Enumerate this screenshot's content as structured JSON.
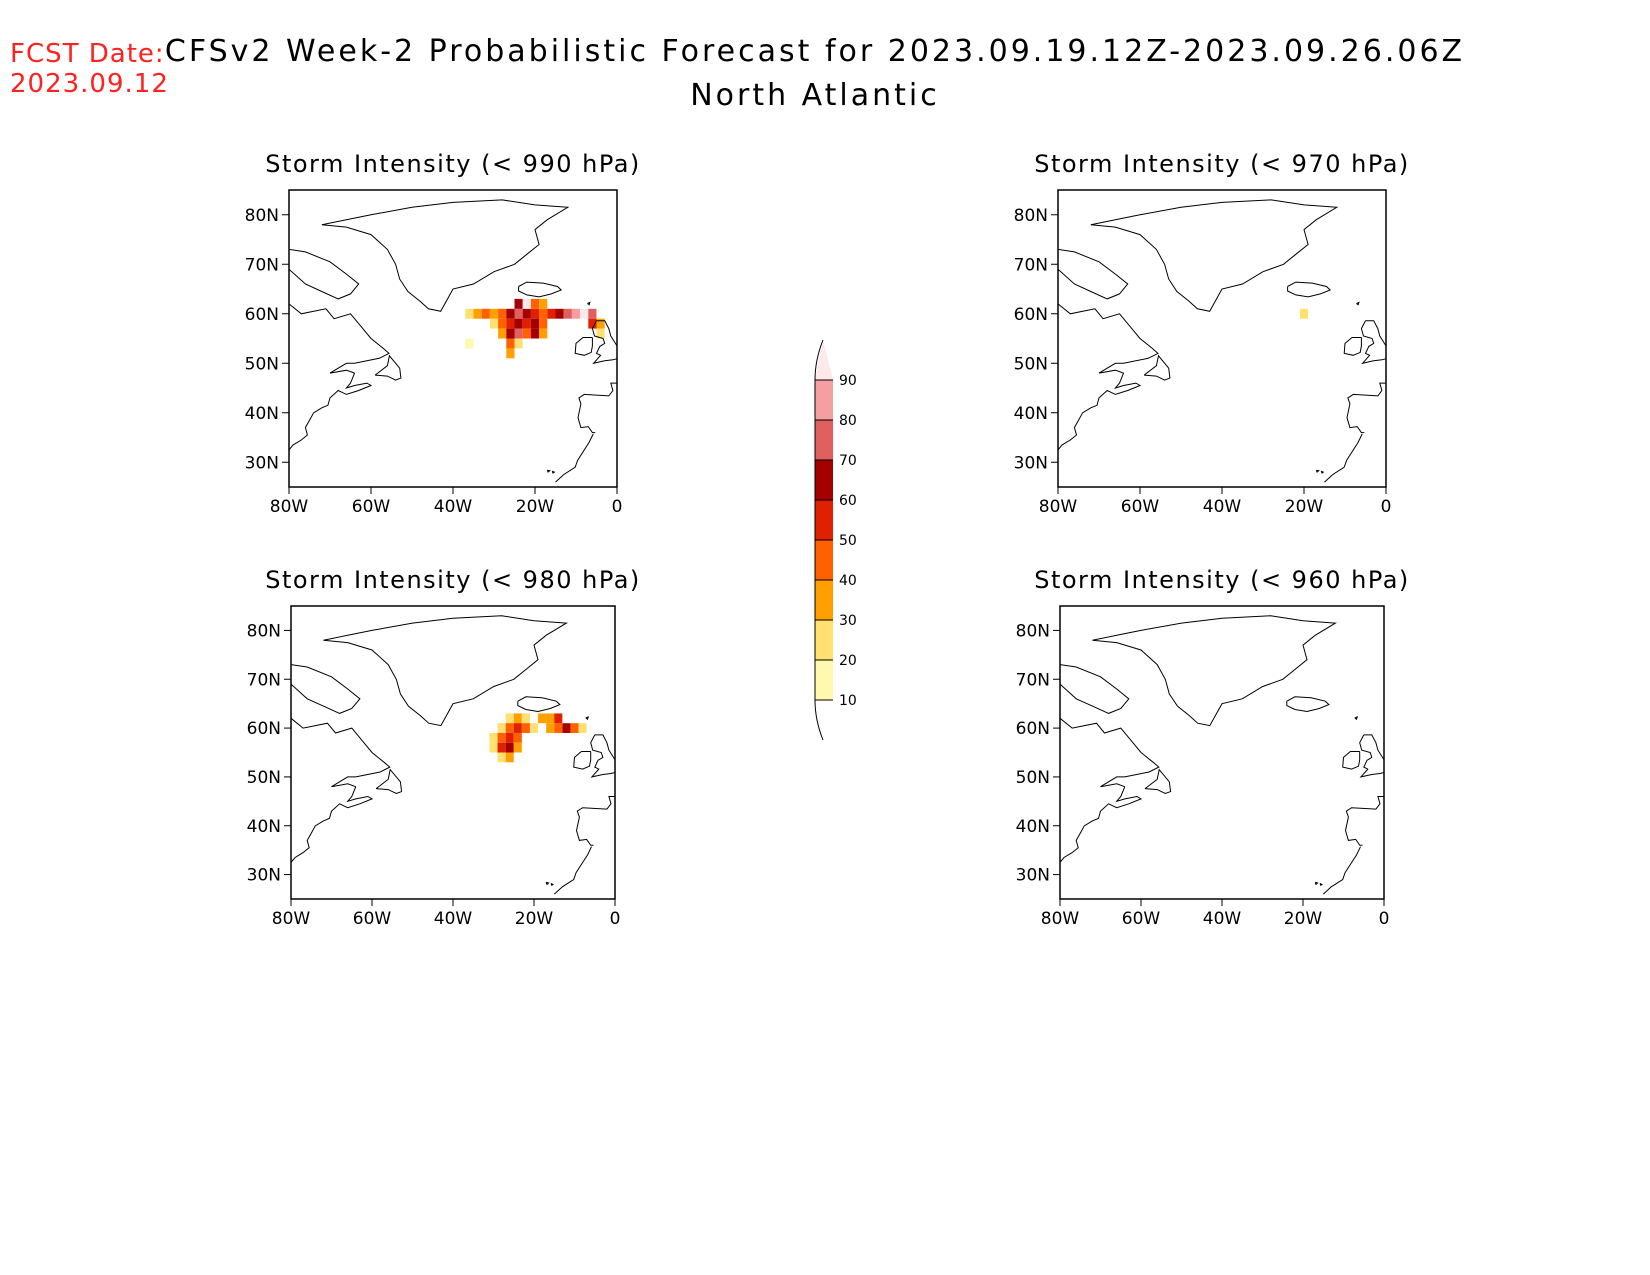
{
  "header": {
    "fcst_label": "FCST Date:",
    "fcst_date": "2023.09.12",
    "title_line1": "CFSv2 Week-2 Probabilistic Forecast for 2023.09.19.12Z-2023.09.26.06Z",
    "title_line2": "North Atlantic",
    "fcst_color": "#ff2020"
  },
  "axes": {
    "lat_labels": [
      "80N",
      "70N",
      "60N",
      "50N",
      "40N",
      "30N"
    ],
    "lon_labels": [
      "80W",
      "60W",
      "40W",
      "20W",
      "0"
    ],
    "lat_values": [
      80,
      70,
      60,
      50,
      40,
      30
    ],
    "lon_values": [
      -80,
      -60,
      -40,
      -20,
      0
    ],
    "lat_range": [
      25,
      85
    ],
    "lon_range": [
      -80,
      0
    ]
  },
  "panels": [
    {
      "title": "Storm Intensity (< 990 hPa)",
      "cells": [
        {
          "lon": -36,
          "lat": 60,
          "p": 20
        },
        {
          "lon": -34,
          "lat": 60,
          "p": 30
        },
        {
          "lon": -32,
          "lat": 60,
          "p": 40
        },
        {
          "lon": -30,
          "lat": 60,
          "p": 30
        },
        {
          "lon": -28,
          "lat": 60,
          "p": 40
        },
        {
          "lon": -26,
          "lat": 60,
          "p": 60
        },
        {
          "lon": -24,
          "lat": 60,
          "p": 70
        },
        {
          "lon": -22,
          "lat": 60,
          "p": 60
        },
        {
          "lon": -20,
          "lat": 60,
          "p": 50
        },
        {
          "lon": -18,
          "lat": 60,
          "p": 40
        },
        {
          "lon": -16,
          "lat": 60,
          "p": 50
        },
        {
          "lon": -14,
          "lat": 60,
          "p": 60
        },
        {
          "lon": -12,
          "lat": 60,
          "p": 70
        },
        {
          "lon": -10,
          "lat": 60,
          "p": 80
        },
        {
          "lon": -8,
          "lat": 60,
          "p": 90
        },
        {
          "lon": -6,
          "lat": 60,
          "p": 70
        },
        {
          "lon": -24,
          "lat": 62,
          "p": 60
        },
        {
          "lon": -22,
          "lat": 62,
          "p": 90
        },
        {
          "lon": -20,
          "lat": 62,
          "p": 40
        },
        {
          "lon": -18,
          "lat": 62,
          "p": 30
        },
        {
          "lon": -30,
          "lat": 58,
          "p": 20
        },
        {
          "lon": -28,
          "lat": 58,
          "p": 40
        },
        {
          "lon": -26,
          "lat": 58,
          "p": 50
        },
        {
          "lon": -24,
          "lat": 58,
          "p": 60
        },
        {
          "lon": -22,
          "lat": 58,
          "p": 50
        },
        {
          "lon": -20,
          "lat": 58,
          "p": 60
        },
        {
          "lon": -18,
          "lat": 58,
          "p": 40
        },
        {
          "lon": -6,
          "lat": 58,
          "p": 50
        },
        {
          "lon": -4,
          "lat": 58,
          "p": 30
        },
        {
          "lon": -28,
          "lat": 56,
          "p": 30
        },
        {
          "lon": -26,
          "lat": 56,
          "p": 60
        },
        {
          "lon": -24,
          "lat": 56,
          "p": 70
        },
        {
          "lon": -22,
          "lat": 56,
          "p": 40
        },
        {
          "lon": -20,
          "lat": 56,
          "p": 60
        },
        {
          "lon": -18,
          "lat": 56,
          "p": 30
        },
        {
          "lon": -4,
          "lat": 56,
          "p": 20
        },
        {
          "lon": -36,
          "lat": 54,
          "p": 10
        },
        {
          "lon": -26,
          "lat": 54,
          "p": 40
        },
        {
          "lon": -24,
          "lat": 54,
          "p": 20
        },
        {
          "lon": -26,
          "lat": 52,
          "p": 30
        }
      ]
    },
    {
      "title": "Storm Intensity (< 970 hPa)",
      "cells": [
        {
          "lon": -20,
          "lat": 60,
          "p": 20
        }
      ]
    },
    {
      "title": "Storm Intensity (< 980 hPa)",
      "cells": [
        {
          "lon": -26,
          "lat": 62,
          "p": 20
        },
        {
          "lon": -24,
          "lat": 62,
          "p": 30
        },
        {
          "lon": -22,
          "lat": 62,
          "p": 20
        },
        {
          "lon": -18,
          "lat": 62,
          "p": 30
        },
        {
          "lon": -16,
          "lat": 62,
          "p": 30
        },
        {
          "lon": -14,
          "lat": 62,
          "p": 50
        },
        {
          "lon": -12,
          "lat": 60,
          "p": 60
        },
        {
          "lon": -10,
          "lat": 60,
          "p": 40
        },
        {
          "lon": -8,
          "lat": 60,
          "p": 20
        },
        {
          "lon": -28,
          "lat": 60,
          "p": 20
        },
        {
          "lon": -26,
          "lat": 60,
          "p": 40
        },
        {
          "lon": -24,
          "lat": 60,
          "p": 50
        },
        {
          "lon": -22,
          "lat": 60,
          "p": 40
        },
        {
          "lon": -20,
          "lat": 60,
          "p": 20
        },
        {
          "lon": -16,
          "lat": 60,
          "p": 30
        },
        {
          "lon": -14,
          "lat": 60,
          "p": 40
        },
        {
          "lon": -30,
          "lat": 58,
          "p": 20
        },
        {
          "lon": -28,
          "lat": 58,
          "p": 40
        },
        {
          "lon": -26,
          "lat": 58,
          "p": 50
        },
        {
          "lon": -24,
          "lat": 58,
          "p": 40
        },
        {
          "lon": -30,
          "lat": 56,
          "p": 20
        },
        {
          "lon": -28,
          "lat": 56,
          "p": 50
        },
        {
          "lon": -26,
          "lat": 56,
          "p": 60
        },
        {
          "lon": -24,
          "lat": 56,
          "p": 30
        },
        {
          "lon": -28,
          "lat": 54,
          "p": 20
        },
        {
          "lon": -26,
          "lat": 54,
          "p": 30
        }
      ]
    },
    {
      "title": "Storm Intensity (< 960 hPa)",
      "cells": []
    }
  ],
  "colorbar": {
    "labels": [
      "90",
      "80",
      "70",
      "60",
      "50",
      "40",
      "30",
      "20",
      "10"
    ],
    "levels": [
      10,
      20,
      30,
      40,
      50,
      60,
      70,
      80,
      90
    ],
    "colors": [
      "#fff9b0",
      "#ffe070",
      "#ffa000",
      "#ff6000",
      "#e02000",
      "#a50000",
      "#e06060",
      "#f4a0a0",
      "#ffe8ea"
    ]
  }
}
